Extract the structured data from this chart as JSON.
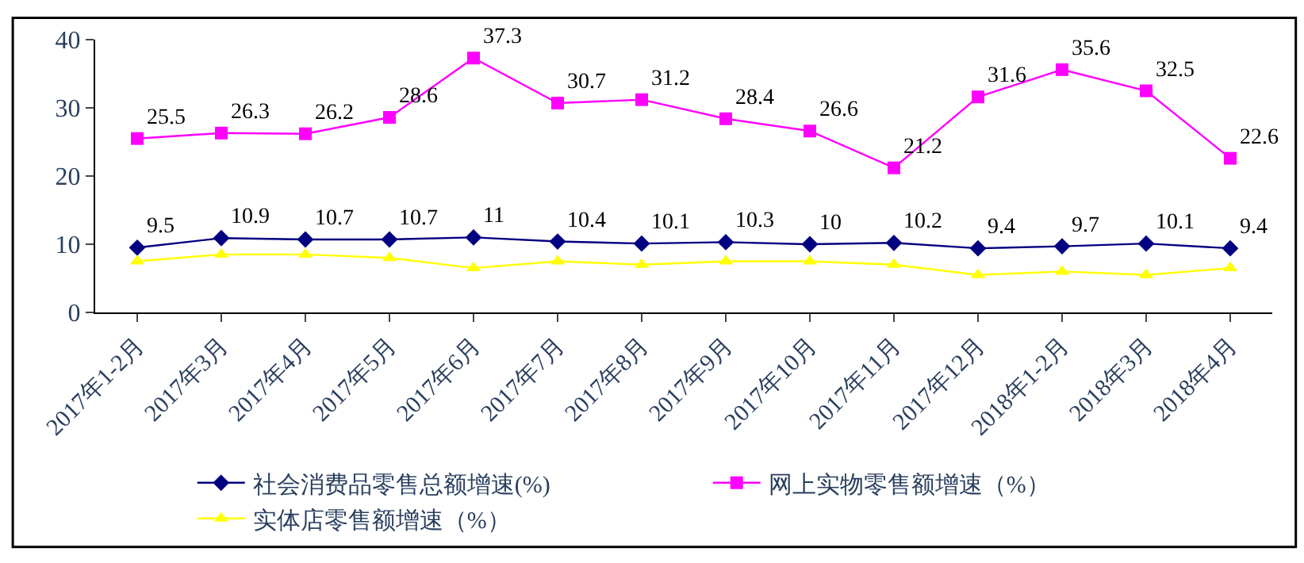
{
  "chart_data": {
    "type": "line",
    "categories": [
      "2017年1-2月",
      "2017年3月",
      "2017年4月",
      "2017年5月",
      "2017年6月",
      "2017年7月",
      "2017年8月",
      "2017年9月",
      "2017年10月",
      "2017年11月",
      "2017年12月",
      "2018年1-2月",
      "2018年3月",
      "2018年4月"
    ],
    "series": [
      {
        "name": "社会消费品零售总额增速(%)",
        "color": "#000080",
        "marker": "diamond",
        "values": [
          9.5,
          10.9,
          10.7,
          10.7,
          11,
          10.4,
          10.1,
          10.3,
          10,
          10.2,
          9.4,
          9.7,
          10.1,
          9.4
        ],
        "value_labels": [
          "9.5",
          "10.9",
          "10.7",
          "10.7",
          "11",
          "10.4",
          "10.1",
          "10.3",
          "10",
          "10.2",
          "9.4",
          "9.7",
          "10.1",
          "9.4"
        ]
      },
      {
        "name": "网上实物零售额增速（%）",
        "color": "#ff00ff",
        "marker": "square",
        "values": [
          25.5,
          26.3,
          26.2,
          28.6,
          37.3,
          30.7,
          31.2,
          28.4,
          26.6,
          21.2,
          31.6,
          35.6,
          32.5,
          22.6
        ],
        "value_labels": [
          "25.5",
          "26.3",
          "26.2",
          "28.6",
          "37.3",
          "30.7",
          "31.2",
          "28.4",
          "26.6",
          "21.2",
          "31.6",
          "35.6",
          "32.5",
          "22.6"
        ]
      },
      {
        "name": "实体店零售额增速（%）",
        "color": "#ffff00",
        "marker": "triangle",
        "values": [
          7.5,
          8.5,
          8.5,
          8,
          6.5,
          7.5,
          7,
          7.5,
          7.5,
          7,
          5.5,
          6,
          5.5,
          6.5
        ]
      }
    ],
    "ylim": [
      0,
      40
    ],
    "yticks": [
      0,
      10,
      20,
      30,
      40
    ],
    "legend": "bottom"
  }
}
